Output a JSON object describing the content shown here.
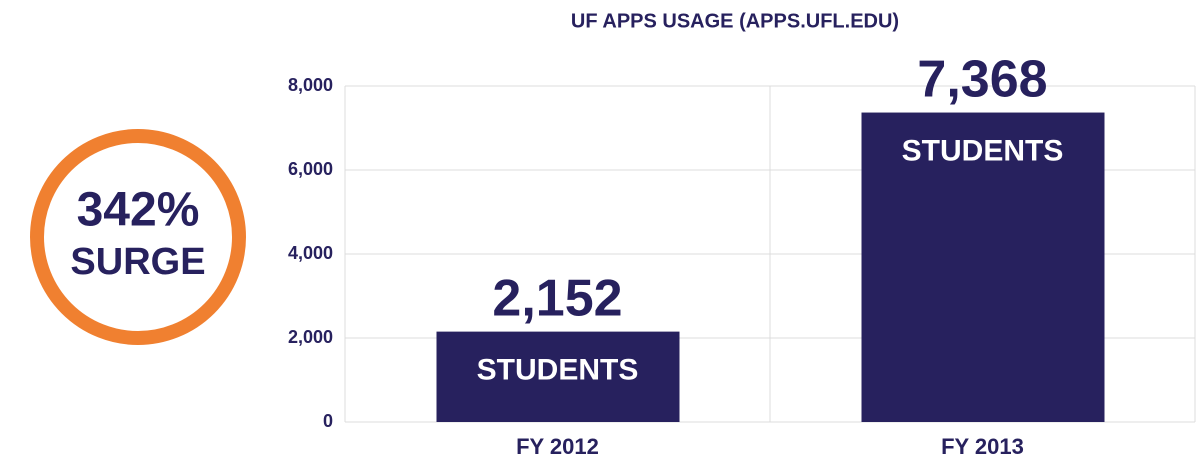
{
  "chart_data": {
    "type": "bar",
    "title": "UF APPS USAGE (APPS.UFL.EDU)",
    "categories": [
      "FY 2012",
      "FY 2013"
    ],
    "values": [
      2152,
      7368
    ],
    "value_labels": [
      "2,152",
      "7,368"
    ],
    "bar_label": "STUDENTS",
    "color": "#27215e",
    "ylim": [
      0,
      8000
    ],
    "yticks": [
      0,
      {
        "value": 2000,
        "label": "2,000"
      },
      {
        "value": 4000,
        "label": "4,000"
      },
      {
        "value": 6000,
        "label": "6,000"
      },
      {
        "value": 8000,
        "label": "8,000"
      }
    ],
    "grid": true,
    "annotations": [
      "342%",
      "SURGE"
    ],
    "annotation_color": "#f08030"
  }
}
